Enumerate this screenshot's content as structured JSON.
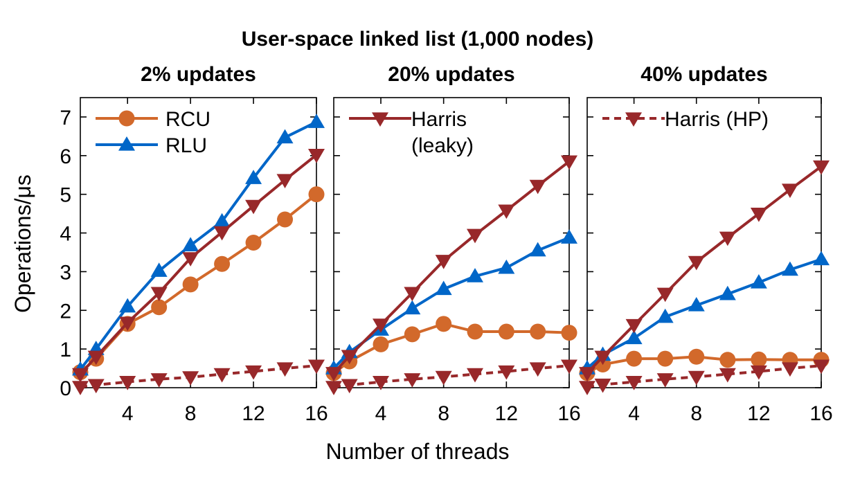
{
  "chart_data": {
    "type": "line",
    "title": "User-space linked list (1,000 nodes)",
    "xlabel": "Number of threads",
    "ylabel": "Operations/μs",
    "xlim": [
      1,
      16
    ],
    "ylim": [
      0,
      7.5
    ],
    "x_ticks": [
      "4",
      "8",
      "12",
      "16"
    ],
    "y_ticks": [
      "0",
      "1",
      "2",
      "3",
      "4",
      "5",
      "6",
      "7"
    ],
    "grid": false,
    "x": [
      1,
      2,
      4,
      6,
      8,
      10,
      12,
      14,
      16
    ],
    "colors": {
      "rcu": "#d2692b",
      "rlu": "#0066c8",
      "harris": "#98282a"
    },
    "panels": [
      {
        "subtitle": "2% updates",
        "series": [
          {
            "name": "RCU",
            "style": "rcu",
            "values": [
              0.4,
              0.75,
              1.65,
              2.08,
              2.67,
              3.2,
              3.75,
              4.35,
              5.0
            ]
          },
          {
            "name": "RLU",
            "style": "rlu",
            "values": [
              0.47,
              1.0,
              2.1,
              3.02,
              3.68,
              4.3,
              5.42,
              6.47,
              6.87
            ]
          },
          {
            "name": "Harris (leaky)",
            "style": "harris_leaky",
            "values": [
              0.35,
              0.8,
              1.68,
              2.45,
              3.35,
              4.02,
              4.7,
              5.37,
              6.02
            ]
          },
          {
            "name": "Harris (HP)",
            "style": "harris_hp",
            "values": [
              0.02,
              0.07,
              0.15,
              0.22,
              0.27,
              0.35,
              0.42,
              0.5,
              0.57
            ]
          }
        ],
        "legend": [
          "RCU",
          "RLU"
        ]
      },
      {
        "subtitle": "20% updates",
        "series": [
          {
            "name": "RCU",
            "style": "rcu",
            "values": [
              0.38,
              0.68,
              1.12,
              1.38,
              1.65,
              1.45,
              1.45,
              1.45,
              1.42
            ]
          },
          {
            "name": "RLU",
            "style": "rlu",
            "values": [
              0.5,
              0.92,
              1.5,
              2.05,
              2.55,
              2.88,
              3.1,
              3.55,
              3.88
            ]
          },
          {
            "name": "Harris (leaky)",
            "style": "harris_leaky",
            "values": [
              0.38,
              0.82,
              1.63,
              2.45,
              3.28,
              3.95,
              4.58,
              5.22,
              5.85
            ]
          },
          {
            "name": "Harris (HP)",
            "style": "harris_hp",
            "values": [
              0.02,
              0.07,
              0.15,
              0.22,
              0.28,
              0.35,
              0.42,
              0.5,
              0.57
            ]
          }
        ],
        "legend": [
          "Harris (leaky)"
        ]
      },
      {
        "subtitle": "40% updates",
        "series": [
          {
            "name": "RCU",
            "style": "rcu",
            "values": [
              0.38,
              0.6,
              0.75,
              0.75,
              0.8,
              0.72,
              0.73,
              0.72,
              0.72
            ]
          },
          {
            "name": "RLU",
            "style": "rlu",
            "values": [
              0.5,
              0.85,
              1.28,
              1.83,
              2.13,
              2.42,
              2.72,
              3.05,
              3.32
            ]
          },
          {
            "name": "Harris (leaky)",
            "style": "harris_leaky",
            "values": [
              0.38,
              0.8,
              1.62,
              2.43,
              3.25,
              3.88,
              4.5,
              5.12,
              5.72
            ]
          },
          {
            "name": "Harris (HP)",
            "style": "harris_hp",
            "values": [
              0.02,
              0.08,
              0.15,
              0.22,
              0.28,
              0.35,
              0.42,
              0.5,
              0.57
            ]
          }
        ],
        "legend": [
          "Harris (HP)"
        ]
      }
    ]
  }
}
